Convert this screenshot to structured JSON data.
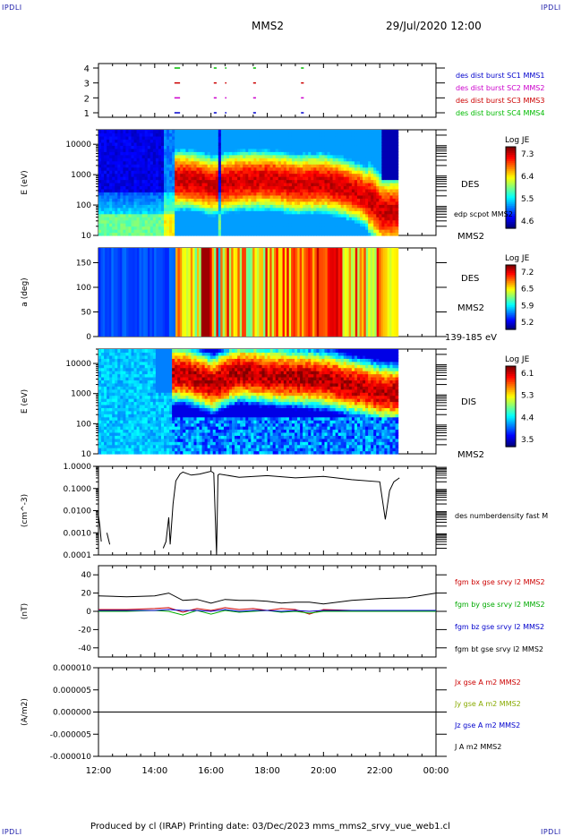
{
  "header": {
    "corner_tl": "IPDLI",
    "corner_tr": "IPDLI",
    "corner_bl": "IPDLI",
    "corner_br": "IPDLI",
    "title": "MMS2",
    "datetime": "29/Jul/2020 12:00"
  },
  "footer": {
    "text": "Produced by cl (IRAP)   Printing date: 03/Dec/2023   mms_mms2_srvy_vue_web1.cl"
  },
  "chart_data": [
    {
      "type": "scatter",
      "panel": "burst-availability",
      "yticks": [
        "1",
        "2",
        "3",
        "4"
      ],
      "legend": [
        {
          "label": "des dist burst SC1 MMS1",
          "color": "#0000cc"
        },
        {
          "label": "des dist burst SC2 MMS2",
          "color": "#cc00cc"
        },
        {
          "label": "des dist burst SC3 MMS3",
          "color": "#cc0000"
        },
        {
          "label": "des dist burst SC4 MMS4",
          "color": "#00bb00"
        }
      ],
      "segments_hours": [
        [
          14.7,
          14.9
        ],
        [
          16.1,
          16.2
        ],
        [
          16.5,
          16.55
        ],
        [
          17.5,
          17.6
        ],
        [
          19.2,
          19.3
        ]
      ]
    },
    {
      "type": "heatmap",
      "panel": "des-energy",
      "ylabel": "E (eV)",
      "yscale": "log",
      "ylim": [
        10,
        30000
      ],
      "yticks": [
        "10",
        "100",
        "1000",
        "10000"
      ],
      "label": "DES",
      "annotation": "edp scpot MMS2",
      "bottom_label": "MMS2",
      "colorbar": {
        "title": "Log JE",
        "ticks": [
          "7.3",
          "6.4",
          "5.5",
          "4.6"
        ]
      },
      "peak_energy_ev": [
        [
          15.0,
          700
        ],
        [
          15.5,
          600
        ],
        [
          16.0,
          450
        ],
        [
          17.0,
          650
        ],
        [
          18.0,
          700
        ],
        [
          19.0,
          500
        ],
        [
          20.0,
          550
        ],
        [
          21.0,
          300
        ],
        [
          22.0,
          60
        ]
      ]
    },
    {
      "type": "heatmap",
      "panel": "des-pitch-angle",
      "ylabel": "a (deg)",
      "ylim": [
        0,
        180
      ],
      "yticks": [
        "0",
        "50",
        "100",
        "150"
      ],
      "label": "DES",
      "sub_label": "MMS2",
      "bottom_label": "139-185 eV",
      "colorbar": {
        "title": "Log JE",
        "ticks": [
          "7.2",
          "6.5",
          "5.9",
          "5.2"
        ]
      }
    },
    {
      "type": "heatmap",
      "panel": "dis-energy",
      "ylabel": "E (eV)",
      "yscale": "log",
      "ylim": [
        10,
        30000
      ],
      "yticks": [
        "10",
        "100",
        "1000",
        "10000"
      ],
      "label": "DIS",
      "bottom_label": "MMS2",
      "colorbar": {
        "title": "Log JE",
        "ticks": [
          "6.1",
          "5.3",
          "4.4",
          "3.5"
        ]
      },
      "peak_energy_ev": [
        [
          15.0,
          4500
        ],
        [
          16.0,
          2000
        ],
        [
          17.0,
          5000
        ],
        [
          18.0,
          4000
        ],
        [
          19.0,
          3500
        ],
        [
          20.0,
          3000
        ],
        [
          21.0,
          1800
        ],
        [
          22.0,
          1100
        ]
      ]
    },
    {
      "type": "line",
      "panel": "electron-density",
      "ylabel": "(cm^-3)",
      "yscale": "log",
      "ylim": [
        0.0001,
        1.0
      ],
      "yticks": [
        "0.0001",
        "0.0010",
        "0.0100",
        "0.1000",
        "1.0000"
      ],
      "label": "des numberdensity fast M",
      "x_hours": [
        12.0,
        12.05,
        12.1,
        12.2,
        12.3,
        12.4,
        14.15,
        14.3,
        14.4,
        14.5,
        14.55,
        14.65,
        14.75,
        14.9,
        15.0,
        15.3,
        15.6,
        16.0,
        16.1,
        16.2,
        16.25,
        16.3,
        17.0,
        18.0,
        19.0,
        20.0,
        21.0,
        22.0,
        22.2,
        22.35,
        22.5,
        22.7
      ],
      "values": [
        0.006,
        0.002,
        0.0004,
        null,
        0.001,
        0.0003,
        null,
        0.0002,
        0.0004,
        0.005,
        0.0003,
        0.02,
        0.22,
        0.45,
        0.55,
        0.4,
        0.45,
        0.6,
        0.5,
        0.0001,
        0.4,
        0.45,
        0.32,
        0.38,
        0.3,
        0.35,
        0.25,
        0.2,
        0.004,
        0.08,
        0.2,
        0.3
      ]
    },
    {
      "type": "line",
      "panel": "fgm-field",
      "ylabel": "(nT)",
      "ylim": [
        -50,
        50
      ],
      "yticks": [
        "-40",
        "-20",
        "0",
        "20",
        "40"
      ],
      "x_hours": [
        12,
        13,
        14,
        14.5,
        15,
        15.5,
        16,
        16.5,
        17,
        17.5,
        18,
        18.5,
        19,
        19.5,
        20,
        21,
        22,
        23,
        24
      ],
      "series": [
        {
          "name": "fgm bx gse srvy l2 MMS2",
          "color": "#cc0000",
          "values": [
            2,
            2,
            3,
            4,
            -1,
            3,
            1,
            4,
            2,
            3,
            1,
            3,
            2,
            -3,
            2,
            1,
            1,
            1,
            1
          ]
        },
        {
          "name": "fgm by gse srvy l2 MMS2",
          "color": "#00aa00",
          "values": [
            0,
            0,
            1,
            0,
            -4,
            1,
            -3,
            1,
            -1,
            0,
            1,
            -1,
            0,
            -2,
            0,
            0,
            0,
            0,
            0
          ]
        },
        {
          "name": "fgm bz gse srvy l2 MMS2",
          "color": "#0000cc",
          "values": [
            1,
            1,
            1,
            2,
            1,
            1,
            0,
            2,
            0,
            1,
            1,
            0,
            1,
            0,
            1,
            1,
            1,
            1,
            1
          ]
        },
        {
          "name": "fgm bt gse srvy l2 MMS2",
          "color": "#000000",
          "values": [
            17,
            16,
            17,
            20,
            12,
            13,
            9,
            13,
            12,
            12,
            11,
            9,
            10,
            10,
            8,
            12,
            14,
            15,
            20
          ]
        }
      ]
    },
    {
      "type": "line",
      "panel": "current-density",
      "ylabel": "(A/m2)",
      "ylim": [
        -1e-05,
        1e-05
      ],
      "yticks": [
        "-0.000010",
        "-0.000005",
        "0.000000",
        "0.000005",
        "0.000010"
      ],
      "xticks": [
        "12:00",
        "14:00",
        "16:00",
        "18:00",
        "20:00",
        "22:00",
        "00:00"
      ],
      "x_hours": [
        12,
        24
      ],
      "series": [
        {
          "name": "Jx gse A m2 MMS2",
          "color": "#cc0000",
          "values": [
            0,
            0
          ]
        },
        {
          "name": "Jy gse A m2 MMS2",
          "color": "#88aa00",
          "values": [
            0,
            0
          ]
        },
        {
          "name": "Jz gse A m2 MMS2",
          "color": "#0000cc",
          "values": [
            0,
            0
          ]
        },
        {
          "name": "J A m2 MMS2",
          "color": "#000000",
          "values": [
            0,
            0
          ]
        }
      ]
    }
  ]
}
